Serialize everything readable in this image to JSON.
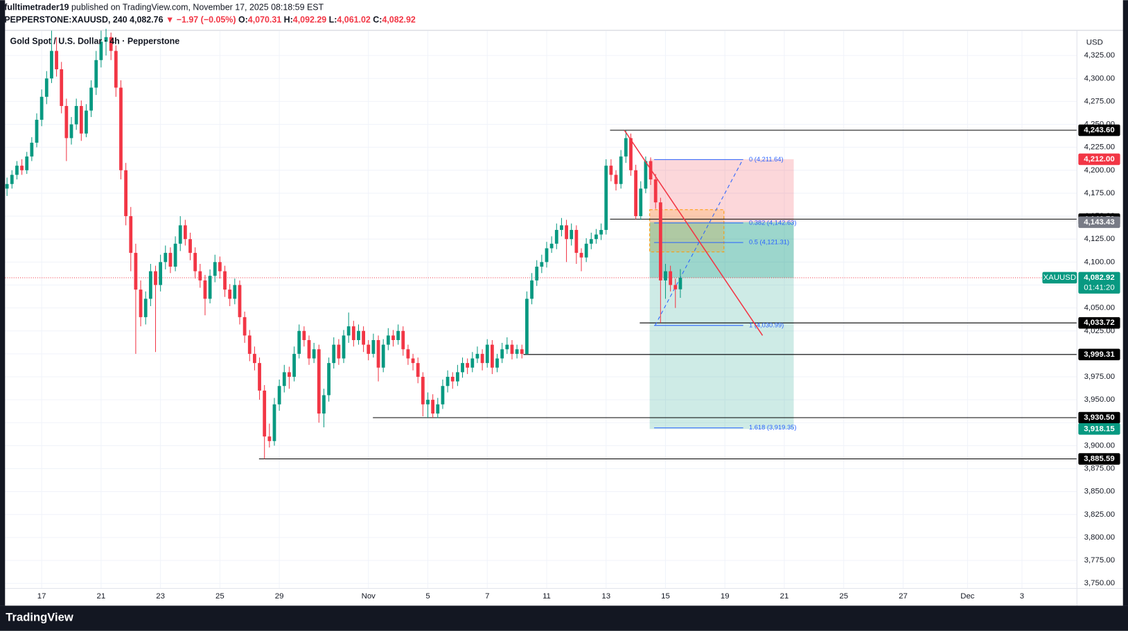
{
  "chart_data": {
    "type": "candlestick",
    "header": {
      "author": "fulltimetrader19",
      "published": "published on TradingView.com, November 17, 2025 08:18:59 EST",
      "symbol": "PEPPERSTONE:XAUUSD, 240",
      "last": "4,082.76",
      "change": "▼ −1.97 (−0.05%)",
      "ohlc": [
        {
          "key": "O:",
          "value": "4,070.31"
        },
        {
          "key": "H:",
          "value": "4,092.29"
        },
        {
          "key": "L:",
          "value": "4,061.02"
        },
        {
          "key": "C:",
          "value": "4,082.92"
        }
      ]
    },
    "title": "Gold Spot / U.S. Dollar · 4h · Pepperstone",
    "unit": "USD",
    "footer": "TradingView",
    "up_color": "#089981",
    "down_color": "#f23645",
    "xlim": [
      -0.4,
      216.1
    ],
    "ylim": [
      3744.5,
      4351.6
    ],
    "xticks": [
      {
        "value": 7,
        "label": "17"
      },
      {
        "value": 19,
        "label": "21"
      },
      {
        "value": 31,
        "label": "23"
      },
      {
        "value": 43,
        "label": "25"
      },
      {
        "value": 55,
        "label": "29"
      },
      {
        "value": 73,
        "label": "Nov"
      },
      {
        "value": 85,
        "label": "5"
      },
      {
        "value": 97,
        "label": "7"
      },
      {
        "value": 109,
        "label": "11"
      },
      {
        "value": 121,
        "label": "13"
      },
      {
        "value": 133,
        "label": "15"
      },
      {
        "value": 145,
        "label": "19"
      },
      {
        "value": 157,
        "label": "21"
      },
      {
        "value": 169,
        "label": "25"
      },
      {
        "value": 181,
        "label": "27"
      },
      {
        "value": 194,
        "label": "Dec"
      },
      {
        "value": 205,
        "label": "3"
      }
    ],
    "yticks": [
      {
        "value": 3750,
        "label": "3,750.00"
      },
      {
        "value": 3775,
        "label": "3,775.00"
      },
      {
        "value": 3800,
        "label": "3,800.00"
      },
      {
        "value": 3825,
        "label": "3,825.00"
      },
      {
        "value": 3850,
        "label": "3,850.00"
      },
      {
        "value": 3875,
        "label": "3,875.00"
      },
      {
        "value": 3900,
        "label": "3,900.00"
      },
      {
        "value": 3925,
        "label": "3,925.00"
      },
      {
        "value": 3950,
        "label": "3,950.00"
      },
      {
        "value": 3975,
        "label": "3,975.00"
      },
      {
        "value": 4000,
        "label": "4,000.00"
      },
      {
        "value": 4025,
        "label": "4,025.00"
      },
      {
        "value": 4050,
        "label": "4,050.00"
      },
      {
        "value": 4075,
        "label": "4,075.00"
      },
      {
        "value": 4100,
        "label": "4,100.00"
      },
      {
        "value": 4125,
        "label": "4,125.00"
      },
      {
        "value": 4150,
        "label": "4,150.00"
      },
      {
        "value": 4175,
        "label": "4,175.00"
      },
      {
        "value": 4200,
        "label": "4,200.00"
      },
      {
        "value": 4225,
        "label": "4,225.00"
      },
      {
        "value": 4250,
        "label": "4,250.00"
      },
      {
        "value": 4275,
        "label": "4,275.00"
      },
      {
        "value": 4300,
        "label": "4,300.00"
      },
      {
        "value": 4325,
        "label": "4,325.00"
      }
    ],
    "grid": true,
    "candles": [
      [
        4180,
        4192,
        4172,
        4185
      ],
      [
        4185,
        4200,
        4180,
        4195
      ],
      [
        4195,
        4210,
        4190,
        4205
      ],
      [
        4205,
        4212,
        4195,
        4200
      ],
      [
        4200,
        4220,
        4196,
        4215
      ],
      [
        4215,
        4236,
        4210,
        4230
      ],
      [
        4230,
        4262,
        4225,
        4255
      ],
      [
        4255,
        4288,
        4248,
        4280
      ],
      [
        4280,
        4308,
        4272,
        4300
      ],
      [
        4300,
        4352,
        4295,
        4330
      ],
      [
        4330,
        4345,
        4302,
        4310
      ],
      [
        4310,
        4318,
        4262,
        4270
      ],
      [
        4270,
        4278,
        4210,
        4235
      ],
      [
        4235,
        4258,
        4228,
        4250
      ],
      [
        4250,
        4278,
        4244,
        4270
      ],
      [
        4270,
        4276,
        4232,
        4240
      ],
      [
        4240,
        4272,
        4236,
        4265
      ],
      [
        4265,
        4298,
        4258,
        4290
      ],
      [
        4290,
        4330,
        4282,
        4320
      ],
      [
        4320,
        4352,
        4312,
        4340
      ],
      [
        4340,
        4354,
        4325,
        4345
      ],
      [
        4345,
        4350,
        4320,
        4330
      ],
      [
        4330,
        4336,
        4280,
        4290
      ],
      [
        4290,
        4298,
        4190,
        4200
      ],
      [
        4200,
        4208,
        4140,
        4150
      ],
      [
        4150,
        4160,
        4090,
        4110
      ],
      [
        4110,
        4120,
        4000,
        4070
      ],
      [
        4070,
        4080,
        4030,
        4040
      ],
      [
        4040,
        4068,
        4032,
        4060
      ],
      [
        4060,
        4098,
        4052,
        4090
      ],
      [
        4090,
        4096,
        4002,
        4075
      ],
      [
        4075,
        4108,
        4068,
        4100
      ],
      [
        4100,
        4118,
        4092,
        4110
      ],
      [
        4110,
        4116,
        4088,
        4095
      ],
      [
        4095,
        4128,
        4090,
        4120
      ],
      [
        4120,
        4150,
        4112,
        4140
      ],
      [
        4140,
        4146,
        4118,
        4125
      ],
      [
        4125,
        4132,
        4102,
        4110
      ],
      [
        4110,
        4116,
        4082,
        4090
      ],
      [
        4090,
        4098,
        4072,
        4080
      ],
      [
        4080,
        4086,
        4042,
        4060
      ],
      [
        4060,
        4092,
        4055,
        4085
      ],
      [
        4085,
        4108,
        4078,
        4100
      ],
      [
        4100,
        4106,
        4082,
        4090
      ],
      [
        4090,
        4096,
        4062,
        4070
      ],
      [
        4070,
        4076,
        4052,
        4060
      ],
      [
        4060,
        4082,
        4054,
        4075
      ],
      [
        4075,
        4080,
        4032,
        4040
      ],
      [
        4040,
        4046,
        4012,
        4020
      ],
      [
        4020,
        4026,
        3992,
        4000
      ],
      [
        4000,
        4008,
        3982,
        3990
      ],
      [
        3990,
        3996,
        3950,
        3960
      ],
      [
        3960,
        3966,
        3885.59,
        3910
      ],
      [
        3910,
        3924,
        3898,
        3905
      ],
      [
        3905,
        3952,
        3900,
        3945
      ],
      [
        3945,
        3972,
        3938,
        3965
      ],
      [
        3965,
        3988,
        3958,
        3980
      ],
      [
        3980,
        3986,
        3962,
        3975
      ],
      [
        3975,
        4008,
        3970,
        4000
      ],
      [
        4000,
        4032,
        3995,
        4025
      ],
      [
        4025,
        4030,
        4008,
        4015
      ],
      [
        4015,
        4020,
        3988,
        3995
      ],
      [
        3995,
        4012,
        3990,
        4005
      ],
      [
        4005,
        4010,
        3925,
        3935
      ],
      [
        3935,
        3962,
        3920,
        3955
      ],
      [
        3955,
        3996,
        3948,
        3990
      ],
      [
        3990,
        4018,
        3984,
        4010
      ],
      [
        4010,
        4016,
        3988,
        3995
      ],
      [
        3995,
        4026,
        3990,
        4020
      ],
      [
        4020,
        4045,
        4012,
        4030
      ],
      [
        4030,
        4036,
        4008,
        4015
      ],
      [
        4015,
        4032,
        4010,
        4025
      ],
      [
        4025,
        4030,
        4002,
        4010
      ],
      [
        4010,
        4015,
        3993,
        4000
      ],
      [
        4000,
        4022,
        3996,
        4015
      ],
      [
        4015,
        4020,
        3970,
        3985
      ],
      [
        3985,
        4016,
        3980,
        4010
      ],
      [
        4010,
        4028,
        4004,
        4020
      ],
      [
        4020,
        4026,
        4008,
        4015
      ],
      [
        4015,
        4032,
        4010,
        4025
      ],
      [
        4025,
        4030,
        3998,
        4005
      ],
      [
        4005,
        4010,
        3988,
        3995
      ],
      [
        3995,
        4000,
        3982,
        3990
      ],
      [
        3990,
        3996,
        3968,
        3975
      ],
      [
        3975,
        3980,
        3932,
        3945
      ],
      [
        3945,
        3958,
        3930.5,
        3950
      ],
      [
        3950,
        3956,
        3930.5,
        3935
      ],
      [
        3935,
        3952,
        3930,
        3945
      ],
      [
        3945,
        3972,
        3940,
        3965
      ],
      [
        3965,
        3982,
        3958,
        3975
      ],
      [
        3975,
        3980,
        3962,
        3970
      ],
      [
        3970,
        3988,
        3965,
        3980
      ],
      [
        3980,
        3996,
        3974,
        3990
      ],
      [
        3990,
        3995,
        3978,
        3985
      ],
      [
        3985,
        4002,
        3980,
        3995
      ],
      [
        3995,
        4008,
        3990,
        4000
      ],
      [
        4000,
        4005,
        3982,
        3990
      ],
      [
        3990,
        4016,
        3985,
        4010
      ],
      [
        4010,
        4015,
        3978,
        3985
      ],
      [
        3985,
        4000,
        3980,
        3995
      ],
      [
        3995,
        4012,
        3990,
        4005
      ],
      [
        4005,
        4018,
        4000,
        4010
      ],
      [
        4010,
        4015,
        3994,
        4000
      ],
      [
        4000,
        4010,
        3995,
        4005
      ],
      [
        4005,
        4010,
        3995,
        4000
      ],
      [
        4000,
        4068,
        3999.31,
        4060
      ],
      [
        4060,
        4088,
        4054,
        4080
      ],
      [
        4080,
        4102,
        4074,
        4095
      ],
      [
        4095,
        4108,
        4088,
        4100
      ],
      [
        4100,
        4122,
        4094,
        4115
      ],
      [
        4115,
        4128,
        4110,
        4120
      ],
      [
        4120,
        4142,
        4114,
        4135
      ],
      [
        4135,
        4148,
        4128,
        4140
      ],
      [
        4140,
        4146,
        4100,
        4125
      ],
      [
        4125,
        4142,
        4118,
        4135
      ],
      [
        4135,
        4140,
        4098,
        4110
      ],
      [
        4110,
        4115,
        4090,
        4105
      ],
      [
        4105,
        4126,
        4100,
        4120
      ],
      [
        4120,
        4132,
        4114,
        4125
      ],
      [
        4125,
        4136,
        4120,
        4130
      ],
      [
        4130,
        4142,
        4124,
        4135
      ],
      [
        4135,
        4212,
        4130,
        4205
      ],
      [
        4205,
        4212,
        4188,
        4195
      ],
      [
        4195,
        4200,
        4178,
        4185
      ],
      [
        4185,
        4222,
        4180,
        4215
      ],
      [
        4215,
        4243.6,
        4208,
        4235
      ],
      [
        4235,
        4240,
        4194,
        4200
      ],
      [
        4200,
        4206,
        4146.72,
        4150
      ],
      [
        4150,
        4188,
        4146,
        4180
      ],
      [
        4180,
        4215,
        4175,
        4210
      ],
      [
        4210,
        4214,
        4184,
        4190
      ],
      [
        4190,
        4196,
        4158,
        4165
      ],
      [
        4165,
        4170,
        4033.72,
        4080
      ],
      [
        4080,
        4098,
        4060,
        4090
      ],
      [
        4090,
        4096,
        4068,
        4075
      ],
      [
        4075,
        4082,
        4050,
        4070.31
      ],
      [
        4070.31,
        4092.29,
        4061.02,
        4082.92
      ]
    ],
    "position": {
      "start": 129.8,
      "end": 158.9,
      "stop": 4212,
      "entry": 4143.43,
      "target": 3918.15
    },
    "zone": {
      "start": 129.8,
      "end": 144.8,
      "top": 4157,
      "bottom": 4111
    },
    "levels": [
      {
        "value": 4243.6,
        "label": "4,243.60",
        "start": 121.8
      },
      {
        "value": 4146.72,
        "label": "4,146.72",
        "start": 121.8
      },
      {
        "value": 4033.72,
        "label": "4,033.72",
        "start": 127.8
      },
      {
        "value": 3999.31,
        "label": "3,999.31",
        "start": 104.3
      },
      {
        "value": 3930.5,
        "label": "3,930.50",
        "start": 73.9
      },
      {
        "value": 3885.59,
        "label": "3,885.59",
        "start": 50.9
      }
    ],
    "price_labels": [
      {
        "value": 4212,
        "label": "4,212.00",
        "color": "#f23645"
      },
      {
        "value": 4143.43,
        "label": "4,143.43",
        "color": "#787b86"
      },
      {
        "value": 3918.15,
        "label": "3,918.15",
        "color": "#089981"
      }
    ],
    "last": {
      "value": 4082.92,
      "label": "4,082.92",
      "countdown": "01:41:20",
      "symbol": "XAUUSD",
      "color": "#089981"
    },
    "fib": {
      "start": 130.7,
      "end": 148.7,
      "color": "#2962ff",
      "levels": [
        {
          "value": 4211.64,
          "label": "0 (4,211.64)"
        },
        {
          "value": 4142.63,
          "label": "0.382 (4,142.63)"
        },
        {
          "value": 4121.31,
          "label": "0.5 (4,121.31)"
        },
        {
          "value": 4030.99,
          "label": "1 (4,030.99)"
        },
        {
          "value": 3919.35,
          "label": "1.618 (3,919.35)"
        }
      ]
    },
    "fib_line": {
      "x": [
        130.9,
        148.6
      ],
      "y": [
        4030.99,
        4211.64
      ]
    },
    "trendline": {
      "x": [
        124.7,
        152.6
      ],
      "y": [
        4243.6,
        4020
      ],
      "color": "#f23645"
    }
  }
}
